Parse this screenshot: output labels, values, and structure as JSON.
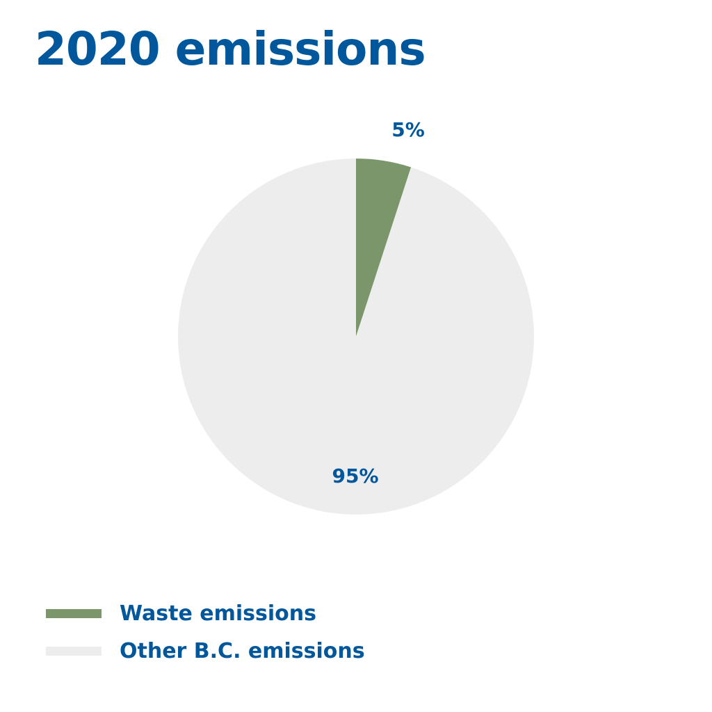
{
  "colors": {
    "title": "#00579b",
    "waste": "#7b966b",
    "other": "#ededed"
  },
  "chart_data": {
    "type": "pie",
    "title": "2020 emissions",
    "slices": [
      {
        "name": "Waste emissions",
        "value": 5,
        "label": "5%",
        "color": "#7b966b"
      },
      {
        "name": "Other B.C. emissions",
        "value": 95,
        "label": "95%",
        "color": "#ededed"
      }
    ],
    "legend_placement": "bottom-left"
  }
}
